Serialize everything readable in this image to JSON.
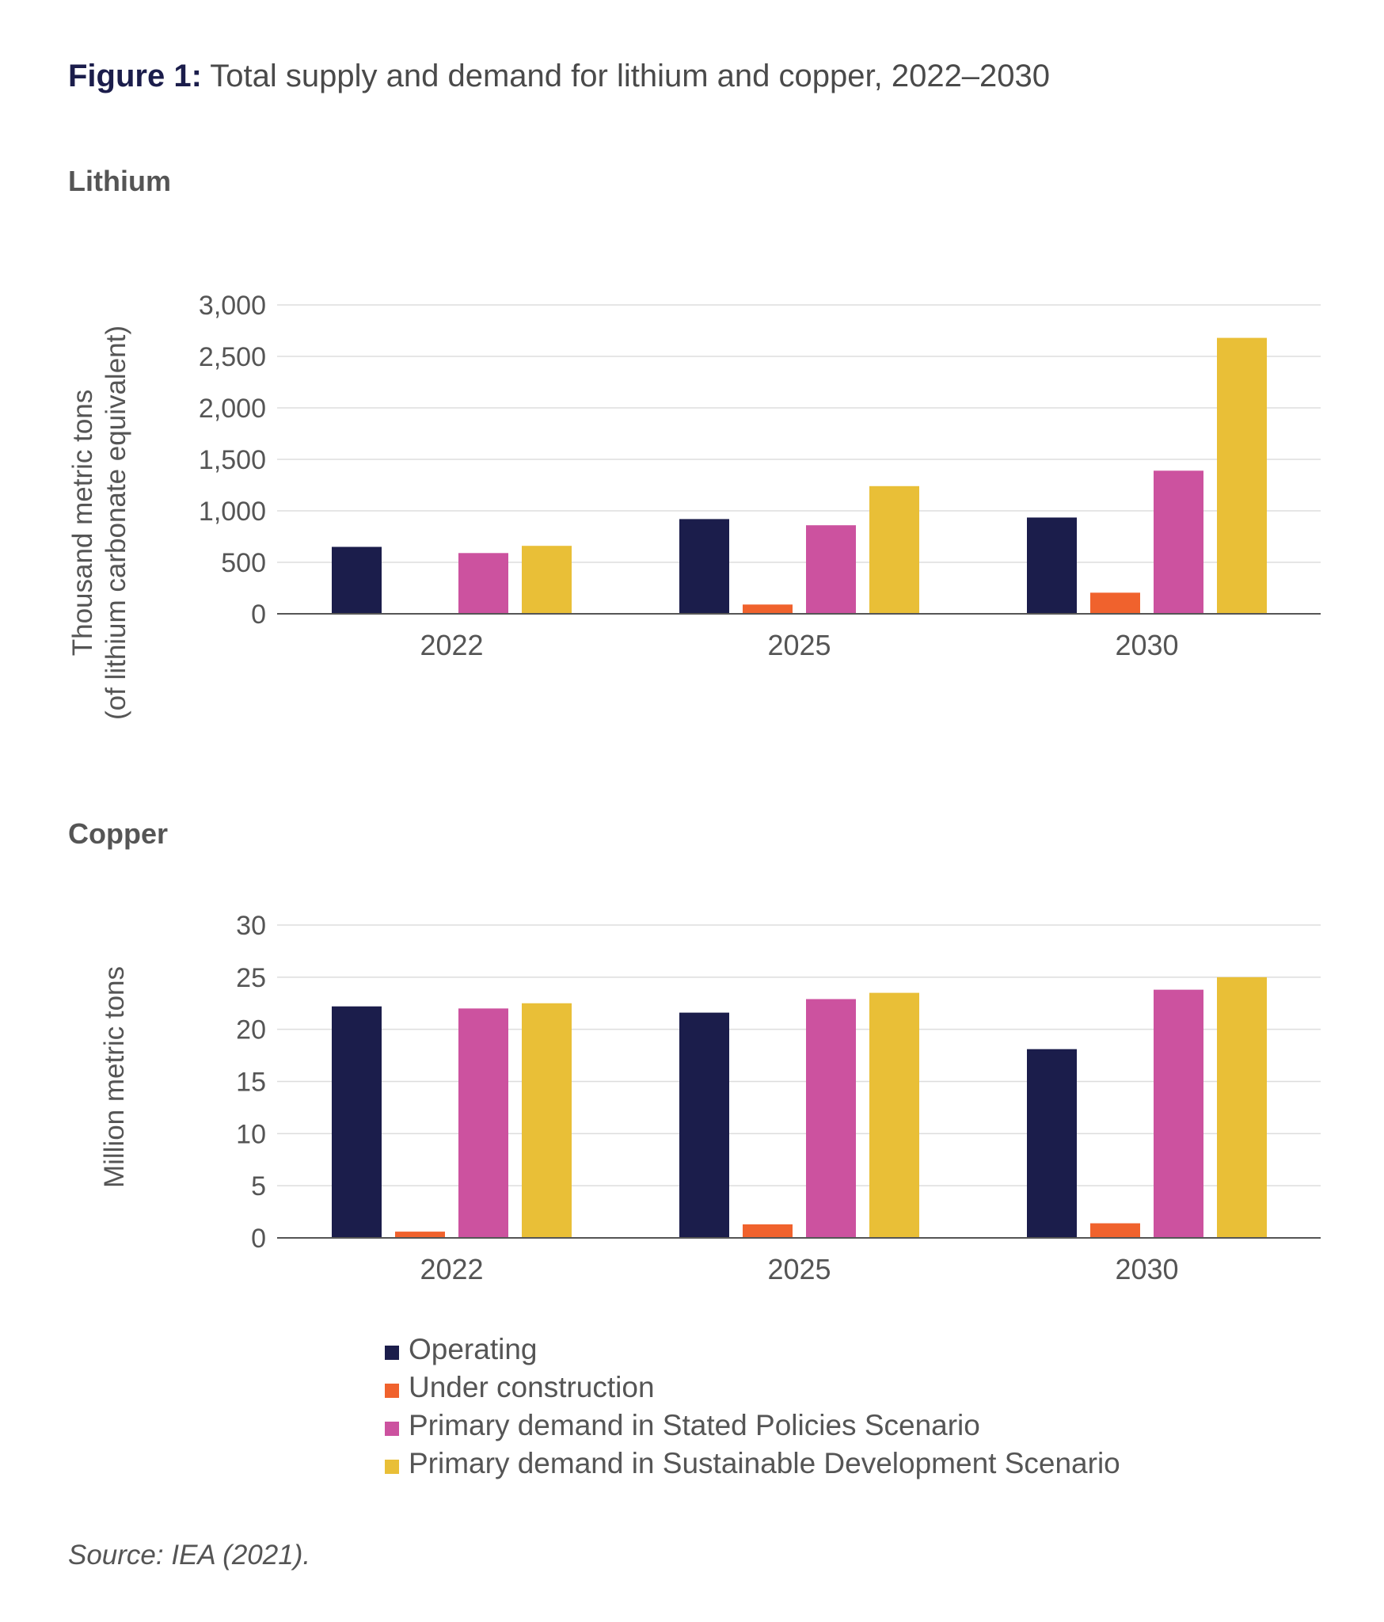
{
  "figure": {
    "title_prefix": "Figure 1:",
    "title_text": " Total supply and demand for lithium and copper, 2022–2030",
    "source": "Source: IEA (2021)."
  },
  "colors": {
    "Operating": "#1b1d4b",
    "Under construction": "#f0622d",
    "Primary demand in Stated Policies Scenario": "#cc529f",
    "Primary demand in Sustainable Development Scenario": "#e9bf37",
    "gridline": "#dddddd",
    "axis": "#555555"
  },
  "legend": [
    "Operating",
    "Under construction",
    "Primary demand in Stated Policies Scenario",
    "Primary demand in Sustainable Development Scenario"
  ],
  "chart_data": [
    {
      "type": "bar",
      "title": "Lithium",
      "ylabel": [
        "Thousand metric tons",
        "(of lithium carbonate equivalent)"
      ],
      "xlabel": "",
      "categories": [
        "2022",
        "2025",
        "2030"
      ],
      "ylim": [
        0,
        3000
      ],
      "yticks": [
        0,
        500,
        1000,
        1500,
        2000,
        2500,
        3000
      ],
      "ytick_labels": [
        "0",
        "500",
        "1,000",
        "1,500",
        "2,000",
        "2,500",
        "3,000"
      ],
      "grid": true,
      "series": [
        {
          "name": "Operating",
          "values": [
            650,
            920,
            935
          ]
        },
        {
          "name": "Under construction",
          "values": [
            0,
            90,
            205
          ]
        },
        {
          "name": "Primary demand in Stated Policies Scenario",
          "values": [
            590,
            860,
            1390
          ]
        },
        {
          "name": "Primary demand in Sustainable Development Scenario",
          "values": [
            660,
            1240,
            2680
          ]
        }
      ]
    },
    {
      "type": "bar",
      "title": "Copper",
      "ylabel": [
        "Million metric tons"
      ],
      "xlabel": "",
      "categories": [
        "2022",
        "2025",
        "2030"
      ],
      "ylim": [
        0,
        30
      ],
      "yticks": [
        0,
        5,
        10,
        15,
        20,
        25,
        30
      ],
      "ytick_labels": [
        "0",
        "5",
        "10",
        "15",
        "20",
        "25",
        "30"
      ],
      "grid": true,
      "series": [
        {
          "name": "Operating",
          "values": [
            22.2,
            21.6,
            18.1
          ]
        },
        {
          "name": "Under construction",
          "values": [
            0.6,
            1.3,
            1.4
          ]
        },
        {
          "name": "Primary demand in Stated Policies Scenario",
          "values": [
            22.0,
            22.9,
            23.8
          ]
        },
        {
          "name": "Primary demand in Sustainable Development Scenario",
          "values": [
            22.5,
            23.5,
            25.0
          ]
        }
      ]
    }
  ]
}
